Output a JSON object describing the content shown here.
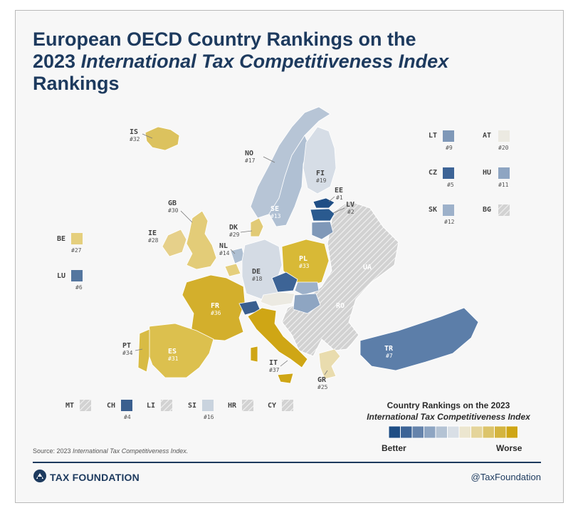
{
  "header": {
    "title_line1": "European OECD Country Rankings on the",
    "title_line2_plain": "2023 ",
    "title_line2_italic": "International Tax Competitiveness Index",
    "title_line3": "Rankings"
  },
  "countries": [
    {
      "code": "IS",
      "rank": "#32"
    },
    {
      "code": "NO",
      "rank": "#17"
    },
    {
      "code": "FI",
      "rank": "#19"
    },
    {
      "code": "EE",
      "rank": "#1"
    },
    {
      "code": "LV",
      "rank": "#2"
    },
    {
      "code": "GB",
      "rank": "#30"
    },
    {
      "code": "SE",
      "rank": "#13"
    },
    {
      "code": "DK",
      "rank": "#29"
    },
    {
      "code": "IE",
      "rank": "#28"
    },
    {
      "code": "NL",
      "rank": "#14"
    },
    {
      "code": "DE",
      "rank": "#18"
    },
    {
      "code": "PL",
      "rank": "#33"
    },
    {
      "code": "UA",
      "rank": ""
    },
    {
      "code": "FR",
      "rank": "#36"
    },
    {
      "code": "RO",
      "rank": ""
    },
    {
      "code": "PT",
      "rank": "#34"
    },
    {
      "code": "ES",
      "rank": "#31"
    },
    {
      "code": "IT",
      "rank": "#37"
    },
    {
      "code": "GR",
      "rank": "#25"
    },
    {
      "code": "TR",
      "rank": "#7"
    }
  ],
  "side_boxes": [
    {
      "code": "LT",
      "rank": "#9",
      "color": "#7f98b8"
    },
    {
      "code": "AT",
      "rank": "#20",
      "color": "#eceae2"
    },
    {
      "code": "CZ",
      "rank": "#5",
      "color": "#3d6496"
    },
    {
      "code": "HU",
      "rank": "#11",
      "color": "#8ea5c2"
    },
    {
      "code": "SK",
      "rank": "#12",
      "color": "#9db1ca"
    },
    {
      "code": "BG",
      "rank": "",
      "color": "hatch"
    },
    {
      "code": "BE",
      "rank": "#27",
      "color": "#e5cf7d"
    },
    {
      "code": "LU",
      "rank": "#6",
      "color": "#54769f"
    }
  ],
  "bottom_boxes": [
    {
      "code": "MT",
      "rank": "",
      "color": "hatch"
    },
    {
      "code": "CH",
      "rank": "#4",
      "color": "#3a5f8f"
    },
    {
      "code": "LI",
      "rank": "",
      "color": "hatch"
    },
    {
      "code": "SI",
      "rank": "#16",
      "color": "#c9d3de"
    },
    {
      "code": "HR",
      "rank": "",
      "color": "hatch"
    },
    {
      "code": "CY",
      "rank": "",
      "color": "hatch"
    }
  ],
  "legend": {
    "title": "Country Rankings on the 2023",
    "subtitle": "International Tax Competitiveness Index",
    "better": "Better",
    "worse": "Worse",
    "colors": [
      "#1f4e85",
      "#3d6496",
      "#6583ab",
      "#8ea5c2",
      "#b4c3d4",
      "#d9dfe6",
      "#ece6cf",
      "#e5d59b",
      "#dcc46b",
      "#d4b43f",
      "#cfa615"
    ]
  },
  "footer": {
    "source_prefix": "Source: 2023 ",
    "source_italic": "International Tax Competitiveness Index.",
    "brand": "TAX FOUNDATION",
    "handle": "@TaxFoundation"
  },
  "icons": {
    "brand_logo": "tax-foundation-logo-icon"
  }
}
